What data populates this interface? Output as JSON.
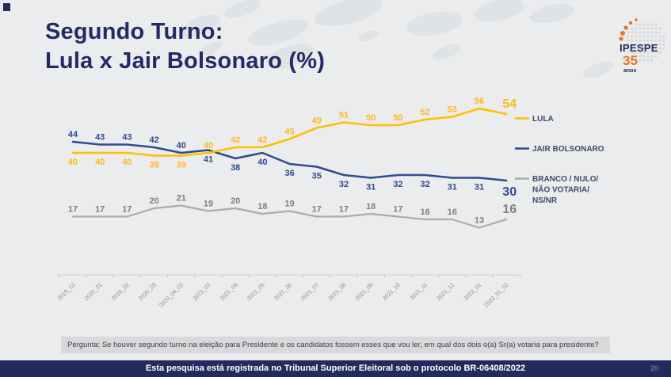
{
  "header": {
    "title_line1": "Segundo Turno:",
    "title_line2": "Lula x Jair Bolsonaro (%)"
  },
  "logo": {
    "brand": "IPESPE",
    "years": "35",
    "years_suffix": "anos"
  },
  "chart_data": {
    "type": "line",
    "title": "Segundo Turno: Lula x Jair Bolsonaro (%)",
    "categories": [
      "2019_12",
      "2020_01",
      "2020_02",
      "2020_03",
      "2020_04_03",
      "2021_03",
      "2021_04",
      "2021_05",
      "2021_06",
      "2021_07",
      "2021_08",
      "2021_09",
      "2021_10",
      "2021_11",
      "2021_12",
      "2022_01",
      "2022_01_02"
    ],
    "series": [
      {
        "name": "BRANCO / NULO/ NÃO VOTARIA/ NS/NR",
        "color": "#ababab",
        "label_color": "#7f7f7f",
        "values": [
          17,
          17,
          17,
          20,
          21,
          19,
          20,
          18,
          19,
          17,
          17,
          18,
          17,
          16,
          16,
          13,
          16
        ],
        "label_side_before_switch": "above",
        "label_side_after_switch": "above",
        "switch_index": 0
      },
      {
        "name": "JAIR BOLSONARO",
        "color": "#2f4b8f",
        "label_color": "#2e4a8f",
        "values": [
          44,
          43,
          43,
          42,
          40,
          41,
          38,
          40,
          36,
          35,
          32,
          31,
          32,
          32,
          31,
          31,
          30
        ],
        "label_side_before_switch": "above",
        "label_side_after_switch": "below",
        "switch_index": 5
      },
      {
        "name": "LULA",
        "color": "#ffc000",
        "label_color": "#ffb81c",
        "values": [
          40,
          40,
          40,
          39,
          39,
          40,
          42,
          42,
          45,
          49,
          51,
          50,
          50,
          52,
          53,
          56,
          54
        ],
        "label_side_before_switch": "below",
        "label_side_after_switch": "above",
        "switch_index": 5
      }
    ],
    "legend": [
      {
        "color": "#ffc000",
        "label_lines": [
          "LULA"
        ]
      },
      {
        "color": "#2f4b8f",
        "label_lines": [
          "JAIR BOLSONARO"
        ]
      },
      {
        "color": "#ababab",
        "label_lines": [
          "BRANCO / NULO/",
          "NÃO VOTARIA/",
          "NS/NR"
        ]
      }
    ],
    "legend_position": "right",
    "grid": false,
    "ylim": [
      0,
      60
    ]
  },
  "question": {
    "text": "Pergunta:  Se houver segundo turno na eleição para Presidente e os candidatos fossem esses que vou ler, em qual dos dois o(a) Sr(a) votaria para presidente?"
  },
  "footer": {
    "text": "Esta pesquisa está registrada no Tribunal Superior Eleitoral sob o protocolo BR-06408/2022",
    "page_number": "20"
  },
  "colors": {
    "background": "#ebeced",
    "accent_navy": "#232a5e",
    "title_navy": "#232a66",
    "lula_yellow": "#ffc000",
    "bolsonaro_blue": "#2f4b8f",
    "neutral_gray": "#ababab",
    "logo_orange": "#e87722"
  }
}
